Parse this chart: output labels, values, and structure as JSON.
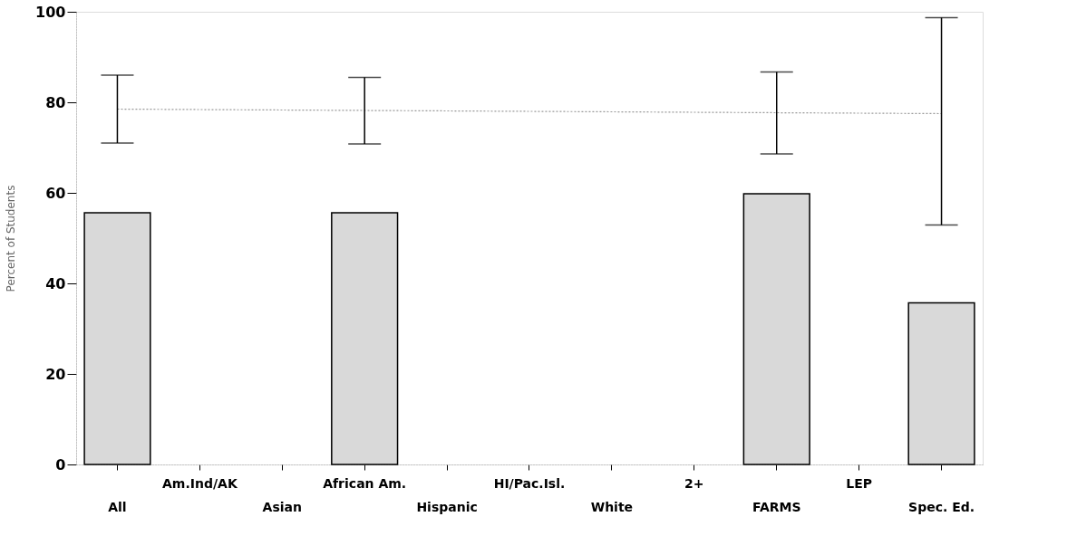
{
  "chart_data": {
    "type": "bar",
    "ylabel": "Percent of Students",
    "categories": [
      "All",
      "Am.Ind/AK",
      "Asian",
      "African Am.",
      "Hispanic",
      "HI/Pac.Isl.",
      "White",
      "2+",
      "FARMS",
      "LEP",
      "Spec. Ed."
    ],
    "series": [
      {
        "color": "#d9d9d9",
        "values": [
          55.6,
          null,
          null,
          55.6,
          null,
          null,
          null,
          null,
          59.8,
          null,
          35.7
        ]
      },
      {
        "type": "line",
        "color": "#999999",
        "marker": "none",
        "line_style": "dotted",
        "values": [
          78.5,
          78.4,
          78.3,
          78.2,
          78.1,
          78,
          77.9,
          77.8,
          77.7,
          77.6,
          77.5
        ],
        "errors": [
          [
            71,
            86
          ],
          null,
          null,
          [
            70.8,
            85.5
          ],
          null,
          null,
          null,
          null,
          [
            68.6,
            86.7
          ],
          null,
          [
            52.9,
            98.7
          ]
        ]
      }
    ],
    "ylim": [
      0,
      100
    ],
    "yticks": [
      0,
      20,
      40,
      60,
      80,
      100
    ],
    "grid": false
  }
}
